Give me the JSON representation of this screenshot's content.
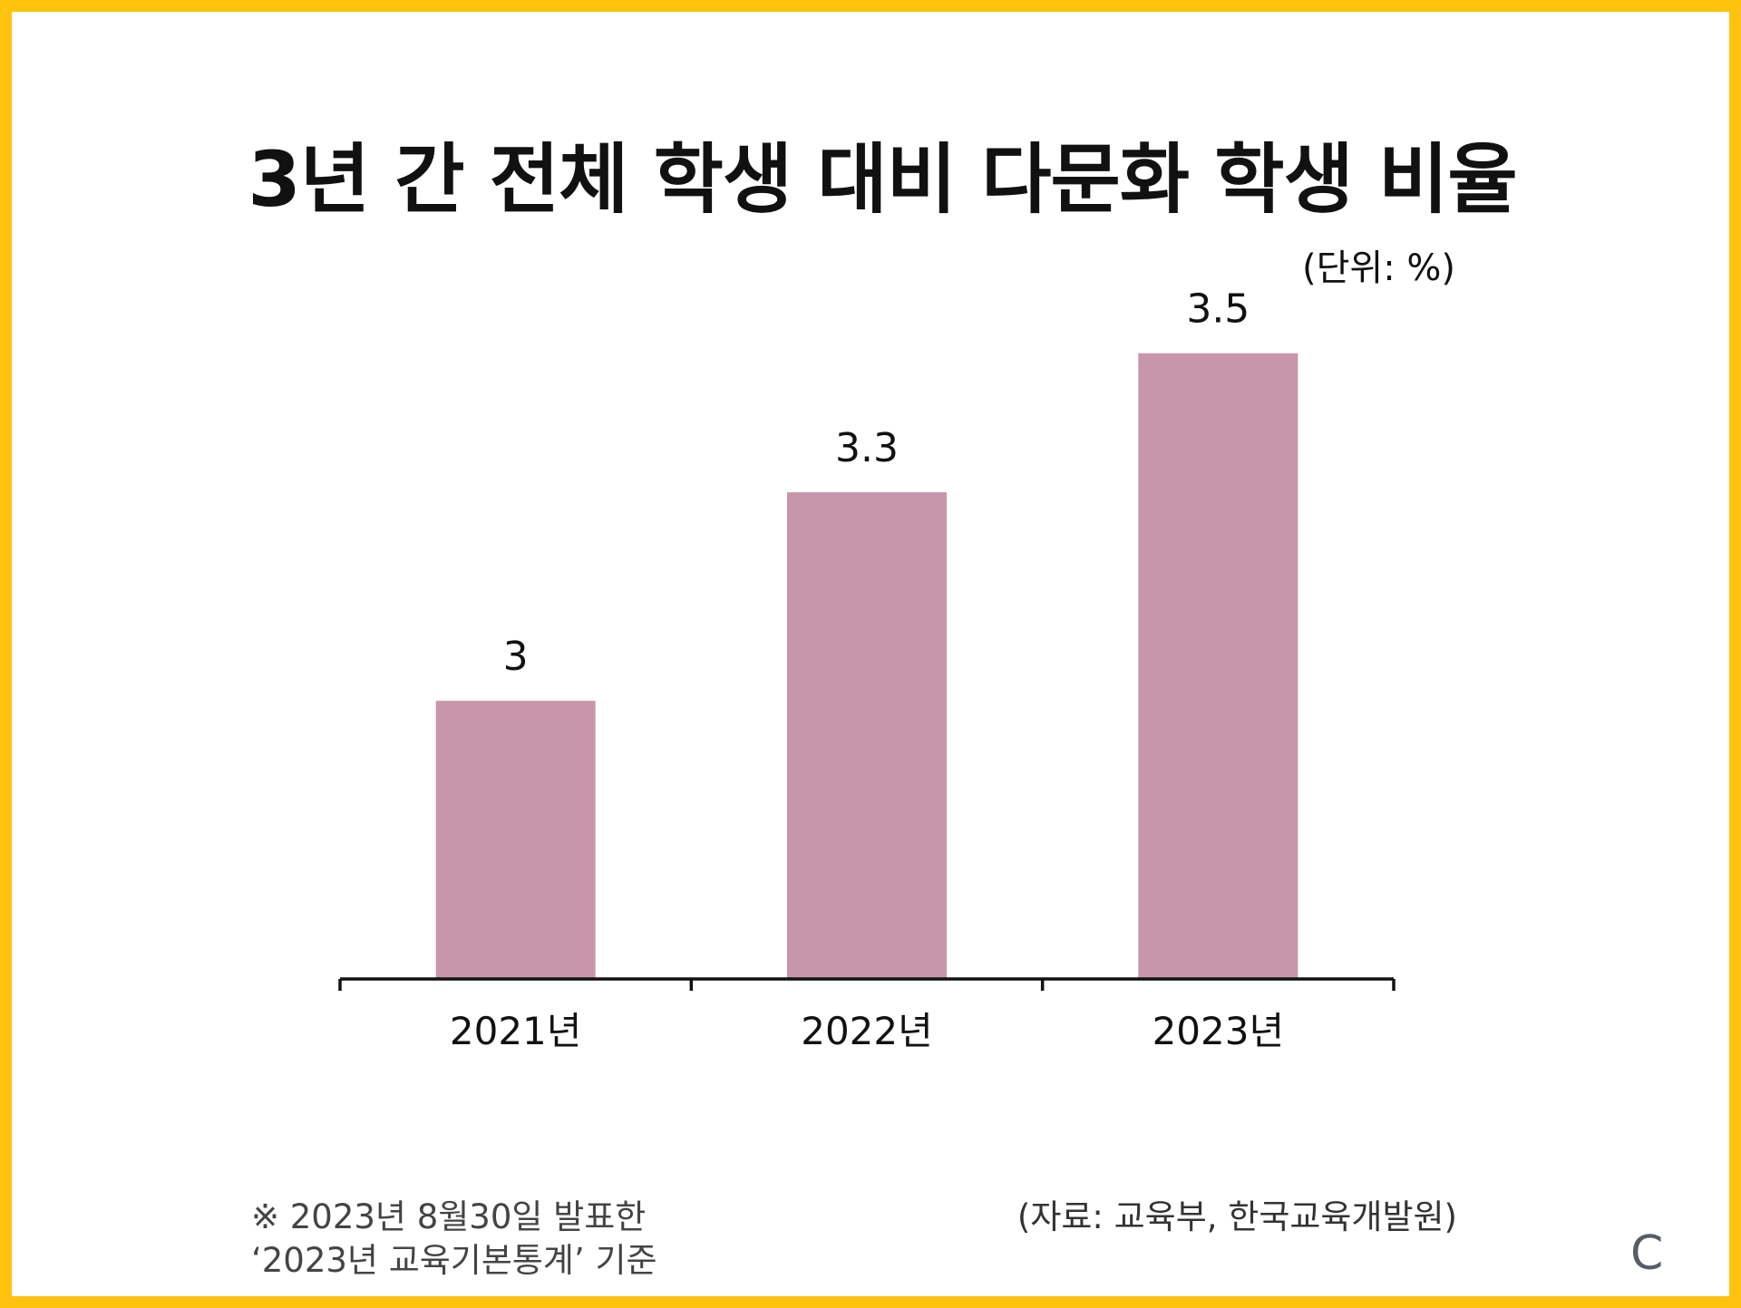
{
  "title": "3년 간 전체 학생 대비 다문화 학생 비율",
  "unit_label": "(단위: %)",
  "note": {
    "line1": "※ 2023년 8월30일 발표한",
    "line2": "‘2023년 교육기본통계’ 기준"
  },
  "source": "(자료: 교육부, 한국교육개발원)",
  "corner_mark": "C",
  "colors": {
    "frame": "#FFC20E",
    "bar": "#C796AA",
    "axis": "#111111"
  },
  "chart_data": {
    "type": "bar",
    "categories": [
      "2021년",
      "2022년",
      "2023년"
    ],
    "values": [
      3,
      3.3,
      3.5
    ],
    "value_labels": [
      "3",
      "3.3",
      "3.5"
    ],
    "title": "3년 간 전체 학생 대비 다문화 학생 비율",
    "xlabel": "",
    "ylabel": "",
    "unit": "%",
    "ylim": [
      2.6,
      3.6
    ],
    "grid": false,
    "legend": "none"
  }
}
